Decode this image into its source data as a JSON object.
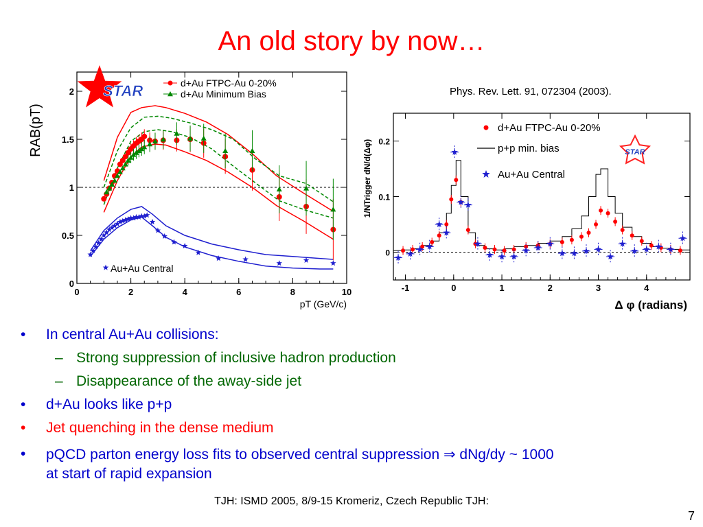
{
  "title": "An old story by now…",
  "citation": "Phys. Rev. Lett. 91, 072304 (2003).",
  "colors": {
    "title": "#ff0000",
    "blue": "#0000cc",
    "green": "#006600",
    "red": "#ff0000",
    "star_blue": "#1f1fcf"
  },
  "bullets": [
    {
      "level": 1,
      "text": "In central Au+Au collisions:",
      "color": "#0000cc"
    },
    {
      "level": 2,
      "text": "Strong suppression of inclusive hadron production",
      "color": "#006600"
    },
    {
      "level": 2,
      "text": "Disappearance of the away-side jet",
      "color": "#006600"
    },
    {
      "level": 1,
      "text": "d+Au looks like p+p",
      "color": "#0000cc"
    },
    {
      "level": 1,
      "text": "Jet quenching in the dense medium",
      "color": "#ff0000"
    },
    {
      "level": 1,
      "text": "pQCD parton energy loss fits to observed central suppression ⇒ dNg/dy ~ 1000",
      "color": "#0000cc"
    },
    {
      "level": 0,
      "text": "at start of rapid expansion",
      "color": "#0000cc"
    }
  ],
  "footer": "TJH: ISMD 2005, 8/9-15 Kromeriz, Czech Republic TJH:",
  "page_number": "7",
  "chart_data": [
    {
      "type": "scatter",
      "ylabel": "RAB(pT)",
      "xlabel": "pT (GeV/c)",
      "xlim": [
        0,
        10
      ],
      "ylim": [
        0,
        2.2
      ],
      "xticks": [
        "0",
        "2",
        "4",
        "6",
        "8",
        "10"
      ],
      "yticks": [
        "0",
        "0.5",
        "1",
        "1.5",
        "2"
      ],
      "reference_line": 1,
      "logo": "STAR",
      "annotation": "Au+Au Central",
      "series": [
        {
          "name": "d+Au FTPC-Au 0-20%",
          "color": "#ff0000",
          "marker": "circle",
          "x": [
            1.0,
            1.1,
            1.2,
            1.3,
            1.4,
            1.5,
            1.6,
            1.7,
            1.8,
            1.9,
            2.0,
            2.1,
            2.2,
            2.3,
            2.4,
            2.5,
            2.7,
            2.9,
            3.2,
            3.7,
            4.2,
            4.7,
            5.5,
            6.5,
            7.5,
            8.5,
            9.5
          ],
          "y": [
            0.88,
            0.93,
            0.99,
            1.05,
            1.12,
            1.17,
            1.24,
            1.28,
            1.32,
            1.36,
            1.4,
            1.43,
            1.46,
            1.48,
            1.5,
            1.53,
            1.49,
            1.48,
            1.49,
            1.49,
            1.5,
            1.46,
            1.32,
            1.18,
            0.9,
            0.8,
            0.56
          ]
        },
        {
          "name": "d+Au Minimum Bias",
          "color": "#008800",
          "marker": "triangle",
          "x": [
            1.1,
            1.2,
            1.3,
            1.4,
            1.5,
            1.6,
            1.7,
            1.8,
            1.9,
            2.0,
            2.1,
            2.2,
            2.3,
            2.4,
            2.5,
            2.7,
            2.9,
            3.2,
            3.7,
            4.2,
            4.7,
            5.5,
            6.5,
            7.5,
            8.5,
            9.5
          ],
          "y": [
            0.95,
            0.99,
            1.03,
            1.07,
            1.12,
            1.16,
            1.2,
            1.24,
            1.28,
            1.31,
            1.34,
            1.36,
            1.38,
            1.4,
            1.42,
            1.45,
            1.48,
            1.5,
            1.56,
            1.51,
            1.51,
            1.38,
            1.38,
            0.98,
            0.99,
            0.77
          ]
        },
        {
          "name": "Au+Au Central",
          "color": "#1f1fcf",
          "marker": "star",
          "x": [
            0.5,
            0.6,
            0.7,
            0.8,
            0.9,
            1.0,
            1.1,
            1.2,
            1.3,
            1.4,
            1.5,
            1.6,
            1.7,
            1.8,
            1.9,
            2.0,
            2.1,
            2.2,
            2.3,
            2.4,
            2.5,
            2.6,
            2.8,
            3.0,
            3.25,
            3.6,
            4.0,
            4.5,
            5.25,
            6.25,
            7.5,
            8.5,
            9.5
          ],
          "y": [
            0.3,
            0.34,
            0.38,
            0.42,
            0.46,
            0.5,
            0.53,
            0.56,
            0.58,
            0.6,
            0.62,
            0.64,
            0.65,
            0.66,
            0.67,
            0.68,
            0.68,
            0.69,
            0.69,
            0.7,
            0.7,
            0.71,
            0.64,
            0.55,
            0.49,
            0.43,
            0.39,
            0.32,
            0.26,
            0.25,
            0.21,
            0.24,
            0.21
          ]
        }
      ],
      "bands": [
        {
          "name": "d+Au FTPC-Au 0-20% band",
          "color": "#ff0000",
          "style": "solid",
          "x": [
            1.0,
            1.5,
            2.0,
            2.4,
            2.9,
            3.3,
            4.0,
            4.8,
            5.6,
            6.5,
            7.4,
            8.4,
            9.5
          ],
          "upper": [
            1.07,
            1.52,
            1.78,
            1.83,
            1.85,
            1.83,
            1.77,
            1.68,
            1.55,
            1.35,
            1.12,
            0.94,
            0.75
          ],
          "lower": [
            0.74,
            1.07,
            1.32,
            1.42,
            1.45,
            1.44,
            1.37,
            1.28,
            1.16,
            1.0,
            0.81,
            0.65,
            0.46
          ]
        },
        {
          "name": "d+Au Minimum Bias band",
          "color": "#008800",
          "style": "dashed",
          "x": [
            1.0,
            1.5,
            2.0,
            2.5,
            3.0,
            3.5,
            4.2,
            5.0,
            5.8,
            6.6,
            7.5,
            8.5,
            9.5
          ],
          "upper": [
            1.0,
            1.38,
            1.62,
            1.73,
            1.74,
            1.72,
            1.67,
            1.6,
            1.5,
            1.3,
            1.12,
            1.04,
            0.85
          ],
          "lower": [
            0.82,
            1.2,
            1.48,
            1.58,
            1.6,
            1.58,
            1.52,
            1.4,
            1.22,
            1.05,
            0.86,
            0.76,
            0.68
          ]
        },
        {
          "name": "Au+Au Central band",
          "color": "#1f1fcf",
          "style": "solid",
          "x": [
            0.5,
            1.0,
            1.5,
            2.0,
            2.4,
            2.8,
            3.3,
            4.0,
            5.0,
            6.0,
            7.0,
            8.0,
            9.0,
            9.5
          ],
          "upper": [
            0.34,
            0.55,
            0.68,
            0.77,
            0.8,
            0.72,
            0.6,
            0.5,
            0.41,
            0.35,
            0.3,
            0.28,
            0.26,
            0.25
          ],
          "lower": [
            0.28,
            0.46,
            0.58,
            0.66,
            0.69,
            0.6,
            0.48,
            0.38,
            0.29,
            0.23,
            0.18,
            0.16,
            0.15,
            0.15
          ]
        }
      ]
    },
    {
      "type": "scatter",
      "ylabel": "1/NTrigger dN/d(Δφ)",
      "xlabel": "Δ φ (radians)",
      "xlim": [
        -1.25,
        4.9
      ],
      "ylim": [
        -0.05,
        0.25
      ],
      "xticks": [
        "-1",
        "0",
        "1",
        "2",
        "3",
        "4"
      ],
      "yticks": [
        "0",
        "0.1",
        "0.2"
      ],
      "reference_line": 0,
      "logo": "STAR",
      "series": [
        {
          "name": "d+Au FTPC-Au 0-20%",
          "color": "#ff0000",
          "marker": "circle",
          "x": [
            -1.05,
            -0.85,
            -0.65,
            -0.45,
            -0.3,
            -0.15,
            -0.05,
            0.05,
            0.15,
            0.3,
            0.45,
            0.65,
            0.85,
            1.05,
            1.25,
            1.5,
            1.75,
            2.0,
            2.25,
            2.45,
            2.65,
            2.8,
            2.95,
            3.05,
            3.2,
            3.35,
            3.5,
            3.7,
            3.9,
            4.1,
            4.3,
            4.5,
            4.7
          ],
          "y": [
            0.003,
            0.005,
            0.01,
            0.018,
            0.03,
            0.05,
            0.095,
            0.13,
            0.09,
            0.04,
            0.015,
            0.008,
            0.005,
            0.003,
            0.005,
            0.01,
            0.012,
            0.015,
            0.018,
            0.022,
            0.028,
            0.035,
            0.05,
            0.075,
            0.07,
            0.055,
            0.04,
            0.03,
            0.02,
            0.012,
            0.008,
            0.005,
            0.003
          ]
        },
        {
          "name": "p+p min. bias",
          "color": "#000000",
          "marker": "histogram",
          "x": [
            -1.25,
            -1.05,
            -0.85,
            -0.65,
            -0.45,
            -0.3,
            -0.15,
            -0.05,
            0.05,
            0.15,
            0.3,
            0.45,
            0.65,
            0.85,
            1.05,
            1.25,
            1.5,
            1.75,
            2.0,
            2.25,
            2.45,
            2.65,
            2.8,
            2.95,
            3.05,
            3.2,
            3.35,
            3.5,
            3.7,
            3.9,
            4.1,
            4.3,
            4.5,
            4.7,
            4.9
          ],
          "y": [
            0.003,
            0.004,
            0.006,
            0.012,
            0.02,
            0.035,
            0.07,
            0.12,
            0.165,
            0.1,
            0.035,
            0.012,
            0.006,
            0.004,
            0.006,
            0.01,
            0.012,
            0.016,
            0.02,
            0.028,
            0.042,
            0.065,
            0.1,
            0.14,
            0.15,
            0.1,
            0.07,
            0.045,
            0.028,
            0.016,
            0.01,
            0.007,
            0.005,
            0.004,
            0.003
          ]
        },
        {
          "name": "Au+Au Central",
          "color": "#1f1fcf",
          "marker": "star",
          "x": [
            -1.15,
            -0.9,
            -0.7,
            -0.5,
            -0.3,
            -0.15,
            0.02,
            0.15,
            0.3,
            0.5,
            0.75,
            1.0,
            1.25,
            1.5,
            1.75,
            2.0,
            2.25,
            2.5,
            2.75,
            3.0,
            3.25,
            3.5,
            3.75,
            4.0,
            4.25,
            4.5,
            4.75
          ],
          "y": [
            -0.01,
            -0.003,
            0.005,
            0.01,
            0.05,
            0.035,
            0.18,
            0.09,
            0.085,
            0.015,
            -0.005,
            -0.008,
            -0.008,
            0.003,
            0.008,
            0.015,
            -0.002,
            -0.002,
            0.002,
            0.005,
            -0.008,
            0.015,
            0.002,
            0.005,
            0.01,
            0.005,
            0.025
          ]
        }
      ]
    }
  ]
}
